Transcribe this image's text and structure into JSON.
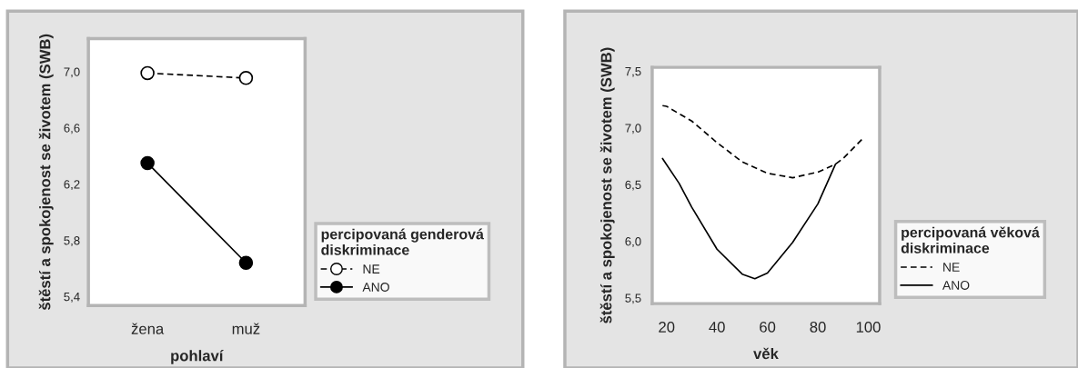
{
  "chart_data": [
    {
      "type": "line",
      "categories": [
        "žena",
        "muž"
      ],
      "xlabel": "pohlaví",
      "ylabel": "štěstí a spokojenost se životem (SWB)",
      "ylim": [
        5.337,
        7.235
      ],
      "yticks": [
        {
          "value": 5.4,
          "label": "5,4"
        },
        {
          "value": 5.8,
          "label": "5,8"
        },
        {
          "value": 6.2,
          "label": "6,2"
        },
        {
          "value": 6.6,
          "label": "6,6"
        },
        {
          "value": 7.0,
          "label": "7,0"
        }
      ],
      "legend": "bottom right",
      "legend_title": "percipovaná genderová\ndiskriminace",
      "marker": "circle",
      "grid": false,
      "series": [
        {
          "name": "NE",
          "color": "#000000",
          "values": [
            6.99,
            6.955
          ],
          "line_style": "dashed"
        },
        {
          "name": "ANO",
          "color": "#000000",
          "values": [
            6.35,
            5.64
          ],
          "line_style": "solid"
        }
      ]
    },
    {
      "type": "line",
      "xlabel": "věk",
      "ylabel": "štěstí a spokojenost se životem (SWB)",
      "xlim": [
        14.3,
        104.5
      ],
      "xticks": [
        20,
        40,
        60,
        80,
        100
      ],
      "ylim": [
        5.45,
        7.534
      ],
      "yticks": [
        {
          "value": 5.5,
          "label": "5,5"
        },
        {
          "value": 6.0,
          "label": "6,0"
        },
        {
          "value": 6.5,
          "label": "6,5"
        },
        {
          "value": 7.0,
          "label": "7,0"
        },
        {
          "value": 7.5,
          "label": "7,5"
        }
      ],
      "legend": "bottom right",
      "legend_title": "percipovaná věková\ndiskriminace",
      "marker": "none",
      "grid": false,
      "series": [
        {
          "name": "NE",
          "color": "#000000",
          "line_style": "dashed",
          "x": [
            18.4,
            20,
            30,
            40,
            50,
            60,
            70,
            80,
            87,
            90,
            98
          ],
          "values": [
            7.196,
            7.19,
            7.06,
            6.87,
            6.7,
            6.6,
            6.56,
            6.61,
            6.68,
            6.73,
            6.91
          ]
        },
        {
          "name": "ANO",
          "color": "#000000",
          "line_style": "solid",
          "x": [
            18.4,
            25,
            30,
            40,
            50,
            55,
            60,
            70,
            80,
            87
          ],
          "values": [
            6.73,
            6.51,
            6.3,
            5.93,
            5.71,
            5.67,
            5.72,
            5.99,
            6.33,
            6.68
          ]
        }
      ]
    }
  ]
}
